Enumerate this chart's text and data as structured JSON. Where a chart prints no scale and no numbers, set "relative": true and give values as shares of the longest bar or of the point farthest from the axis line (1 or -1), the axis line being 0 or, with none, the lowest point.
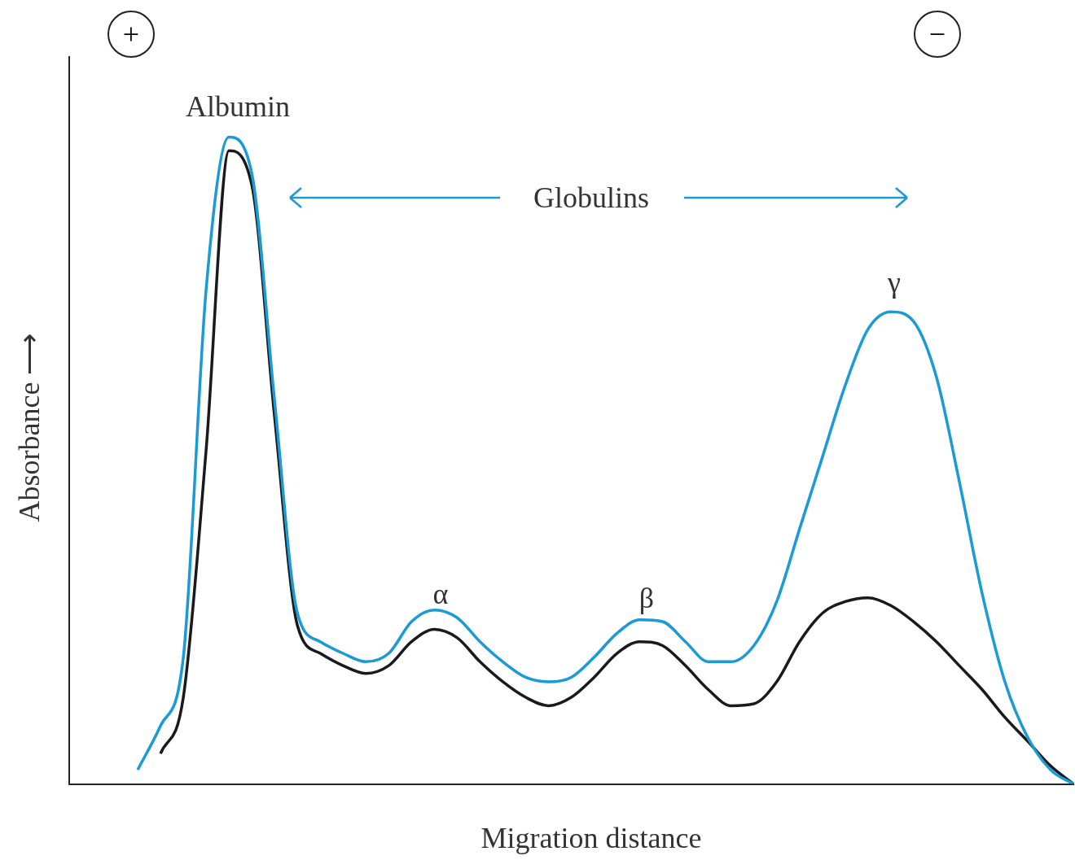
{
  "chart_data": {
    "type": "line",
    "relative": true,
    "xlabel": "Migration distance",
    "ylabel": "Absorbance ⟶",
    "categories": [
      null,
      null,
      null,
      null,
      null,
      null,
      null,
      null,
      null,
      null,
      null,
      null,
      null,
      null,
      null,
      null,
      null,
      null,
      null,
      null,
      null,
      null,
      null,
      null,
      null,
      null,
      null,
      null,
      null,
      null,
      null,
      null,
      null,
      null,
      null,
      null,
      null,
      null,
      null,
      null,
      null,
      null,
      null,
      null,
      null
    ],
    "series": [
      {
        "color": "#1a9ad6",
        "values": [
          null,
          null,
          null,
          0.022,
          0.09,
          0.196,
          0.765,
          1,
          0.944,
          0.592,
          0.264,
          0.22,
          0.202,
          0.189,
          0.202,
          0.251,
          0.269,
          0.257,
          0.22,
          0.189,
          0.165,
          0.158,
          0.165,
          0.196,
          0.233,
          0.254,
          0.251,
          0.22,
          0.189,
          0.189,
          0.214,
          0.282,
          0.394,
          0.505,
          0.616,
          0.703,
          0.73,
          0.715,
          0.629,
          0.468,
          0.295,
          0.158,
          0.072,
          0.022,
          0
        ]
      },
      {
        "color": "#1a1a1a",
        "values": [
          null,
          null,
          null,
          null,
          0.047,
          0.134,
          0.517,
          0.979,
          0.926,
          0.567,
          0.245,
          0.202,
          0.183,
          0.171,
          0.183,
          0.22,
          0.239,
          0.226,
          0.189,
          0.158,
          0.134,
          0.121,
          0.134,
          0.165,
          0.202,
          0.22,
          0.214,
          0.183,
          0.146,
          0.121,
          0.124,
          0.158,
          0.22,
          0.264,
          0.282,
          0.288,
          0.276,
          0.251,
          0.22,
          0.183,
          0.146,
          0.103,
          0.066,
          0.028,
          0
        ]
      }
    ],
    "annotations": [
      "+",
      "−",
      "Albumin",
      "Globulins",
      "α",
      "β",
      "γ"
    ],
    "grid": false,
    "legend": false,
    "line_style": "solid",
    "marker": "none"
  }
}
